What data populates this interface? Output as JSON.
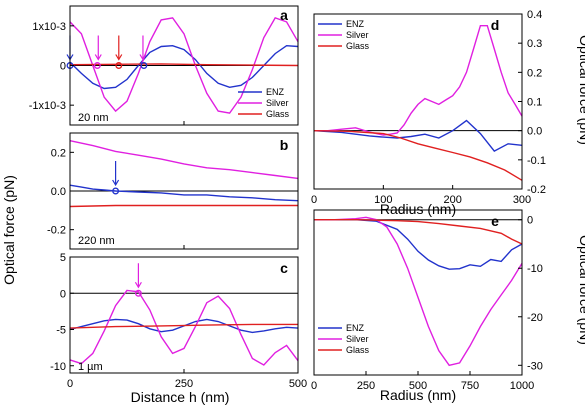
{
  "colors": {
    "enz": "#2233cc",
    "silver": "#e020e0",
    "glass": "#e02020",
    "zero": "#000000"
  },
  "figure": {
    "ylabel_left": "Optical force (pN)",
    "xlabel_left": "Distance h (nm)",
    "ylabel_right": "Optical force (pN)"
  },
  "chart_data": [
    {
      "id": "a",
      "type": "line",
      "panel_label": "a",
      "size_label": "20 nm",
      "xlim": [
        0,
        500
      ],
      "ylim": [
        -0.0015,
        0.0015
      ],
      "ytick_values": [
        0.001,
        0,
        -0.001
      ],
      "ytick_labels": [
        "1x10-3",
        "0",
        "-1x10-3"
      ],
      "legend": {
        "position": "bottom-right"
      },
      "series": [
        {
          "name": "ENZ",
          "color_key": "enz",
          "x": [
            0,
            25,
            50,
            75,
            100,
            125,
            150,
            175,
            200,
            225,
            250,
            275,
            300,
            325,
            350,
            375,
            400,
            425,
            450,
            475,
            500
          ],
          "y": [
            8e-05,
            -0.0002,
            -0.00045,
            -0.00058,
            -0.00055,
            -0.00035,
            0,
            0.00033,
            0.00048,
            0.0005,
            0.0004,
            0.00015,
            -0.0002,
            -0.00045,
            -0.00055,
            -0.0005,
            -0.0003,
            0,
            0.0003,
            0.0005,
            0.00048
          ]
        },
        {
          "name": "Silver",
          "color_key": "silver",
          "x": [
            0,
            25,
            50,
            75,
            100,
            125,
            150,
            175,
            200,
            225,
            250,
            275,
            300,
            325,
            350,
            375,
            400,
            425,
            450,
            475,
            500
          ],
          "y": [
            0.0011,
            0.0008,
            0,
            -0.0008,
            -0.00115,
            -0.0009,
            -0.0002,
            0.0006,
            0.00115,
            0.0012,
            0.0008,
            0,
            -0.0007,
            -0.00115,
            -0.0012,
            -0.0008,
            -0.0001,
            0.0007,
            0.0012,
            0.0011,
            0.0006
          ]
        },
        {
          "name": "Glass",
          "color_key": "glass",
          "x": [
            0,
            100,
            200,
            300,
            400,
            500
          ],
          "y": [
            2e-05,
            3e-05,
            4e-05,
            2e-05,
            1e-05,
            0
          ]
        }
      ],
      "markers": [
        {
          "x": 0,
          "y": 0,
          "color_key": "enz"
        },
        {
          "x": 60,
          "y": 0,
          "color_key": "silver"
        },
        {
          "x": 107,
          "y": 0,
          "color_key": "glass"
        },
        {
          "x": 162,
          "y": 0,
          "color_key": "enz"
        }
      ],
      "arrows": [
        {
          "x": 0,
          "color_key": "enz"
        },
        {
          "x": 62,
          "color_key": "silver"
        },
        {
          "x": 107,
          "color_key": "glass"
        },
        {
          "x": 160,
          "color_key": "silver"
        }
      ]
    },
    {
      "id": "b",
      "type": "line",
      "panel_label": "b",
      "size_label": "220 nm",
      "xlim": [
        0,
        500
      ],
      "ylim": [
        -0.3,
        0.3
      ],
      "ytick_values": [
        0.2,
        0,
        -0.2
      ],
      "ytick_labels": [
        "0.2",
        "0.0",
        "-0.2"
      ],
      "series": [
        {
          "name": "ENZ",
          "color_key": "enz",
          "x": [
            0,
            25,
            50,
            75,
            100,
            150,
            200,
            250,
            300,
            350,
            400,
            450,
            500
          ],
          "y": [
            0.03,
            0.02,
            0.01,
            0.005,
            0,
            -0.005,
            -0.01,
            -0.02,
            -0.02,
            -0.03,
            -0.035,
            -0.045,
            -0.05
          ]
        },
        {
          "name": "Silver",
          "color_key": "silver",
          "x": [
            0,
            50,
            100,
            150,
            200,
            250,
            300,
            350,
            400,
            450,
            500
          ],
          "y": [
            0.26,
            0.235,
            0.205,
            0.185,
            0.165,
            0.14,
            0.12,
            0.11,
            0.095,
            0.08,
            0.065
          ]
        },
        {
          "name": "Glass",
          "color_key": "glass",
          "x": [
            0,
            100,
            200,
            300,
            400,
            500
          ],
          "y": [
            -0.08,
            -0.075,
            -0.075,
            -0.075,
            -0.075,
            -0.075
          ]
        }
      ],
      "markers": [
        {
          "x": 100,
          "y": 0,
          "color_key": "enz"
        }
      ],
      "arrows": [
        {
          "x": 100,
          "color_key": "enz"
        }
      ]
    },
    {
      "id": "c",
      "type": "line",
      "panel_label": "c",
      "size_label": "1 µm",
      "xlim": [
        0,
        500
      ],
      "ylim": [
        -11,
        5
      ],
      "ytick_values": [
        5,
        0,
        -5,
        -10
      ],
      "ytick_labels": [
        "5",
        "0",
        "-5",
        "-10"
      ],
      "xtick_values": [
        0,
        250,
        500
      ],
      "xtick_labels": [
        "0",
        "250",
        "500"
      ],
      "series": [
        {
          "name": "ENZ",
          "color_key": "enz",
          "x": [
            0,
            25,
            50,
            75,
            100,
            125,
            150,
            175,
            200,
            225,
            250,
            275,
            300,
            325,
            350,
            375,
            400,
            425,
            450,
            475,
            500
          ],
          "y": [
            -5,
            -4.6,
            -4.2,
            -3.8,
            -3.6,
            -3.7,
            -4.2,
            -4.9,
            -5.3,
            -5.1,
            -4.5,
            -3.9,
            -3.6,
            -3.9,
            -4.5,
            -5.1,
            -5.4,
            -5.2,
            -4.9,
            -4.7,
            -4.8
          ]
        },
        {
          "name": "Silver",
          "color_key": "silver",
          "x": [
            0,
            25,
            50,
            75,
            100,
            125,
            150,
            175,
            200,
            225,
            250,
            275,
            300,
            325,
            350,
            375,
            400,
            425,
            450,
            475,
            500
          ],
          "y": [
            -9.2,
            -9.7,
            -8.3,
            -5.2,
            -1.7,
            0.4,
            0.2,
            -2.3,
            -6,
            -8.3,
            -7.6,
            -4.6,
            -1.3,
            -0.4,
            -2.1,
            -5.7,
            -9,
            -9.9,
            -8.2,
            -7.2,
            -9.3
          ]
        },
        {
          "name": "Glass",
          "color_key": "glass",
          "x": [
            0,
            100,
            200,
            300,
            400,
            500
          ],
          "y": [
            -4.8,
            -4.6,
            -4.5,
            -4.4,
            -4.3,
            -4.3
          ]
        }
      ],
      "markers": [
        {
          "x": 150,
          "y": 0,
          "color_key": "silver"
        }
      ],
      "arrows": [
        {
          "x": 150,
          "color_key": "silver"
        }
      ]
    },
    {
      "id": "d",
      "type": "line",
      "panel_label": "d",
      "xlim": [
        0,
        300
      ],
      "ylim": [
        -0.2,
        0.4
      ],
      "xlabel": "Radius (nm)",
      "xtick_values": [
        0,
        100,
        200,
        300
      ],
      "xtick_labels": [
        "0",
        "100",
        "200",
        "300"
      ],
      "ytick_values": [
        0.4,
        0.3,
        0.2,
        0.1,
        0.0,
        -0.1,
        -0.2
      ],
      "ytick_labels": [
        "0.4",
        "0.3",
        "0.2",
        "0.1",
        "0.0",
        "-0.1",
        "-0.2"
      ],
      "legend": {
        "position": "top-left"
      },
      "series": [
        {
          "name": "ENZ",
          "color_key": "enz",
          "x": [
            0,
            20,
            40,
            60,
            80,
            100,
            120,
            140,
            160,
            180,
            200,
            220,
            240,
            260,
            280,
            300
          ],
          "y": [
            0,
            -0.003,
            -0.006,
            -0.012,
            -0.018,
            -0.022,
            -0.025,
            -0.02,
            -0.012,
            -0.025,
            0,
            0.035,
            -0.01,
            -0.07,
            -0.045,
            -0.05
          ]
        },
        {
          "name": "Silver",
          "color_key": "silver",
          "x": [
            0,
            20,
            40,
            60,
            80,
            100,
            110,
            120,
            130,
            140,
            150,
            160,
            170,
            180,
            190,
            200,
            210,
            220,
            230,
            240,
            250,
            260,
            270,
            280,
            290,
            300
          ],
          "y": [
            0,
            0,
            0.005,
            0.01,
            -0.005,
            -0.015,
            -0.012,
            -0.008,
            0.02,
            0.06,
            0.09,
            0.11,
            0.1,
            0.09,
            0.105,
            0.12,
            0.15,
            0.2,
            0.28,
            0.36,
            0.36,
            0.28,
            0.2,
            0.13,
            0.09,
            0.05
          ]
        },
        {
          "name": "Glass",
          "color_key": "glass",
          "x": [
            0,
            50,
            100,
            125,
            150,
            175,
            200,
            225,
            250,
            275,
            300
          ],
          "y": [
            0,
            -0.002,
            -0.01,
            -0.025,
            -0.045,
            -0.06,
            -0.075,
            -0.09,
            -0.11,
            -0.135,
            -0.17
          ]
        }
      ]
    },
    {
      "id": "e",
      "type": "line",
      "panel_label": "e",
      "xlim": [
        0,
        1000
      ],
      "ylim": [
        -32,
        2
      ],
      "xlabel": "Radius (nm)",
      "xtick_values": [
        0,
        250,
        500,
        750,
        1000
      ],
      "xtick_labels": [
        "0",
        "250",
        "500",
        "750",
        "1000"
      ],
      "ytick_values": [
        0,
        -10,
        -20,
        -30
      ],
      "ytick_labels": [
        "0",
        "-10",
        "-20",
        "-30"
      ],
      "legend": {
        "position": "bottom-left"
      },
      "series": [
        {
          "name": "ENZ",
          "color_key": "enz",
          "x": [
            0,
            100,
            200,
            300,
            400,
            450,
            500,
            550,
            600,
            650,
            700,
            750,
            800,
            850,
            900,
            950,
            1000
          ],
          "y": [
            0,
            0,
            0,
            -0.3,
            -2,
            -4,
            -6.5,
            -8.3,
            -9.5,
            -10.2,
            -10.1,
            -9.3,
            -9.6,
            -8.2,
            -8.6,
            -6.2,
            -5
          ]
        },
        {
          "name": "Silver",
          "color_key": "silver",
          "x": [
            0,
            100,
            200,
            250,
            300,
            350,
            400,
            450,
            500,
            550,
            600,
            650,
            700,
            750,
            800,
            850,
            900,
            950,
            1000
          ],
          "y": [
            0,
            0,
            0.2,
            0.5,
            0,
            -1.5,
            -5,
            -10,
            -16,
            -22,
            -27,
            -30,
            -29.5,
            -26,
            -22,
            -18.5,
            -15.5,
            -12.5,
            -9
          ]
        },
        {
          "name": "Glass",
          "color_key": "glass",
          "x": [
            0,
            200,
            300,
            400,
            500,
            600,
            700,
            800,
            900,
            950,
            1000
          ],
          "y": [
            0,
            0,
            -0.1,
            -0.2,
            -0.4,
            -0.8,
            -1.3,
            -1.8,
            -2.8,
            -4,
            -5
          ]
        }
      ]
    }
  ]
}
